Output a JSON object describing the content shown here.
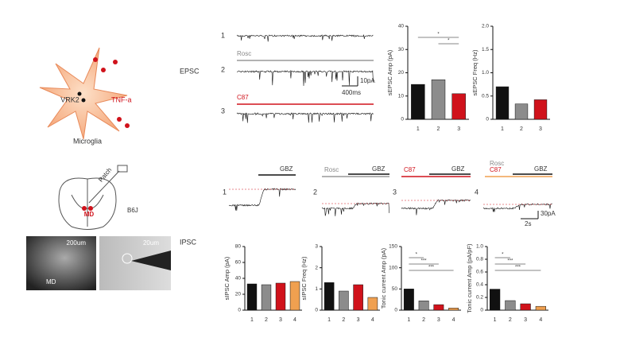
{
  "labels": {
    "epsc": "EPSC",
    "ipsc": "IPSC",
    "vrk2": "VRK2",
    "tnf": "TNF-a",
    "microglia": "Microglia",
    "patch": "Patch",
    "md": "MD",
    "b6j": "B6J",
    "scale_um1": "200um",
    "scale_um2": "20um",
    "md_img": "MD",
    "rosc": "Rosc",
    "c87": "C87",
    "pa10": "10pA",
    "ms400": "400ms",
    "gbz": "GBZ",
    "pa30": "30pA",
    "s2": "2s",
    "trace1": "1",
    "trace2": "2",
    "trace3": "3",
    "trace4": "4"
  },
  "chart_data": [
    {
      "type": "bar",
      "ylabel": "sEPSC Amp (pA)",
      "categories": [
        "1",
        "2",
        "3"
      ],
      "values": [
        15,
        17,
        11
      ],
      "colors": [
        "#111111",
        "#8c8c8c",
        "#d0121b"
      ],
      "ylim": [
        0,
        40
      ],
      "yticks": [
        0,
        10,
        20,
        30,
        40
      ],
      "annotations": [
        "*",
        "*"
      ]
    },
    {
      "type": "bar",
      "ylabel": "sEPSC Freq (Hz)",
      "categories": [
        "1",
        "2",
        "3"
      ],
      "values": [
        0.7,
        0.33,
        0.42
      ],
      "colors": [
        "#111111",
        "#8c8c8c",
        "#d0121b"
      ],
      "ylim": [
        0,
        2
      ],
      "yticks": [
        0,
        0.5,
        {
          "value": 1,
          "label": "1.0"
        },
        1.5,
        {
          "value": 2,
          "label": "2.0"
        }
      ],
      "annotations": []
    },
    {
      "type": "bar",
      "ylabel": "sIPSC Amp (pA)",
      "categories": [
        "1",
        "2",
        "3",
        "4"
      ],
      "values": [
        33,
        32,
        34,
        36
      ],
      "colors": [
        "#111111",
        "#8c8c8c",
        "#d0121b",
        "#f0a050"
      ],
      "ylim": [
        0,
        80
      ],
      "yticks": [
        0,
        20,
        40,
        60,
        80
      ],
      "annotations": []
    },
    {
      "type": "bar",
      "ylabel": "sIPSC Freq (Hz)",
      "categories": [
        "1",
        "2",
        "3",
        "4"
      ],
      "values": [
        1.3,
        0.9,
        1.2,
        0.6
      ],
      "colors": [
        "#111111",
        "#8c8c8c",
        "#d0121b",
        "#f0a050"
      ],
      "ylim": [
        0,
        3
      ],
      "yticks": [
        0,
        1,
        2,
        3
      ],
      "annotations": []
    },
    {
      "type": "bar",
      "ylabel": "Tonic current Amp (pA)",
      "categories": [
        "1",
        "2",
        "3",
        "4"
      ],
      "values": [
        50,
        22,
        13,
        5
      ],
      "colors": [
        "#111111",
        "#8c8c8c",
        "#d0121b",
        "#f0a050"
      ],
      "ylim": [
        0,
        150
      ],
      "yticks": [
        0,
        50,
        100,
        150
      ],
      "annotations": [
        "*",
        "***",
        "***"
      ]
    },
    {
      "type": "bar",
      "ylabel": "Tonic current Amp (pA/pF)",
      "categories": [
        "1",
        "2",
        "3",
        "4"
      ],
      "values": [
        0.33,
        0.15,
        0.1,
        0.06
      ],
      "colors": [
        "#111111",
        "#8c8c8c",
        "#d0121b",
        "#f0a050"
      ],
      "ylim": [
        0,
        1
      ],
      "yticks": [
        0,
        0.2,
        0.4,
        0.6,
        0.8,
        {
          "value": 1,
          "label": "1.0"
        }
      ],
      "annotations": [
        "*",
        "***",
        "***"
      ]
    }
  ]
}
